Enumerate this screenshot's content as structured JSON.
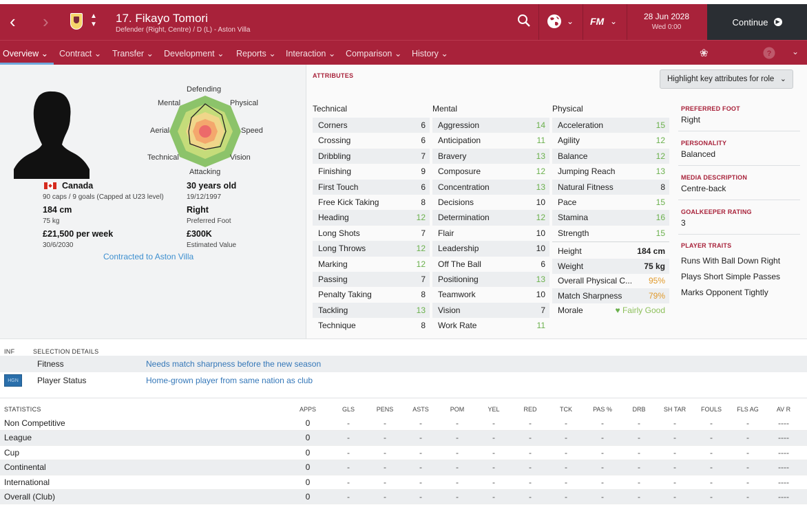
{
  "header": {
    "player_name": "17. Fikayo Tomori",
    "player_subtitle": "Defender (Right, Centre) / D (L) - Aston Villa",
    "date": "28 Jun 2028",
    "time": "Wed 0:00",
    "continue_label": "Continue",
    "icons": [
      "back-arrow",
      "forward-arrow",
      "club-crest",
      "prev-next-arrows",
      "search-icon",
      "globe-icon",
      "fm-icon",
      "play-icon"
    ]
  },
  "tabs": [
    {
      "label": "Overview",
      "active": true
    },
    {
      "label": "Contract"
    },
    {
      "label": "Transfer"
    },
    {
      "label": "Development"
    },
    {
      "label": "Reports"
    },
    {
      "label": "Interaction"
    },
    {
      "label": "Comparison"
    },
    {
      "label": "History"
    }
  ],
  "profile": {
    "nationality": "Canada",
    "caps": "90 caps / 9 goals (Capped at U23 level)",
    "height": "184 cm",
    "weight": "75 kg",
    "wage": "£21,500 per week",
    "contract_end": "30/6/2030",
    "age": "30 years old",
    "dob": "19/12/1997",
    "foot": "Right",
    "foot_caption": "Preferred Foot",
    "value": "£300K",
    "value_caption": "Estimated Value",
    "contract_link": "Contracted to Aston Villa"
  },
  "radar": {
    "labels": {
      "defending": "Defending",
      "physical": "Physical",
      "speed": "Speed",
      "vision": "Vision",
      "attacking": "Attacking",
      "technical": "Technical",
      "aerial": "Aerial",
      "mental": "Mental"
    }
  },
  "attributes": {
    "section_title": "ATTRIBUTES",
    "highlight_button": "Highlight key attributes for role",
    "technical_title": "Technical",
    "mental_title": "Mental",
    "physical_title": "Physical",
    "technical": [
      {
        "name": "Corners",
        "value": "6"
      },
      {
        "name": "Crossing",
        "value": "6"
      },
      {
        "name": "Dribbling",
        "value": "7"
      },
      {
        "name": "Finishing",
        "value": "9"
      },
      {
        "name": "First Touch",
        "value": "6"
      },
      {
        "name": "Free Kick Taking",
        "value": "8"
      },
      {
        "name": "Heading",
        "value": "12"
      },
      {
        "name": "Long Shots",
        "value": "7"
      },
      {
        "name": "Long Throws",
        "value": "12"
      },
      {
        "name": "Marking",
        "value": "12"
      },
      {
        "name": "Passing",
        "value": "7"
      },
      {
        "name": "Penalty Taking",
        "value": "8"
      },
      {
        "name": "Tackling",
        "value": "13"
      },
      {
        "name": "Technique",
        "value": "8"
      }
    ],
    "mental": [
      {
        "name": "Aggression",
        "value": "14"
      },
      {
        "name": "Anticipation",
        "value": "11"
      },
      {
        "name": "Bravery",
        "value": "13"
      },
      {
        "name": "Composure",
        "value": "12"
      },
      {
        "name": "Concentration",
        "value": "13"
      },
      {
        "name": "Decisions",
        "value": "10"
      },
      {
        "name": "Determination",
        "value": "12"
      },
      {
        "name": "Flair",
        "value": "10"
      },
      {
        "name": "Leadership",
        "value": "10"
      },
      {
        "name": "Off The Ball",
        "value": "6"
      },
      {
        "name": "Positioning",
        "value": "13"
      },
      {
        "name": "Teamwork",
        "value": "10"
      },
      {
        "name": "Vision",
        "value": "7"
      },
      {
        "name": "Work Rate",
        "value": "11"
      }
    ],
    "physical": [
      {
        "name": "Acceleration",
        "value": "15"
      },
      {
        "name": "Agility",
        "value": "12"
      },
      {
        "name": "Balance",
        "value": "12"
      },
      {
        "name": "Jumping Reach",
        "value": "13"
      },
      {
        "name": "Natural Fitness",
        "value": "8"
      },
      {
        "name": "Pace",
        "value": "15"
      },
      {
        "name": "Stamina",
        "value": "16"
      },
      {
        "name": "Strength",
        "value": "15"
      }
    ],
    "physical_extra": [
      {
        "name": "Height",
        "value": "184 cm"
      },
      {
        "name": "Weight",
        "value": "75 kg"
      },
      {
        "name": "Overall Physical C...",
        "value": "95%"
      },
      {
        "name": "Match Sharpness",
        "value": "79%"
      },
      {
        "name": "Morale",
        "value": "Fairly Good"
      }
    ]
  },
  "side_info": {
    "preferred_foot_head": "PREFERRED FOOT",
    "preferred_foot": "Right",
    "personality_head": "PERSONALITY",
    "personality": "Balanced",
    "media_head": "MEDIA DESCRIPTION",
    "media": "Centre-back",
    "gk_head": "GOALKEEPER RATING",
    "gk": "3",
    "traits_head": "PLAYER TRAITS",
    "traits": [
      "Runs With Ball Down Right",
      "Plays Short Simple Passes",
      "Marks Opponent Tightly"
    ]
  },
  "selection": {
    "inf_head": "INF",
    "title": "SELECTION DETAILS",
    "rows": [
      {
        "label": "Fitness",
        "value": "Needs match sharpness before the new season",
        "badge": ""
      },
      {
        "label": "Player Status",
        "value": "Home-grown player from same nation as club",
        "badge": "HGN"
      }
    ]
  },
  "statistics": {
    "title": "STATISTICS",
    "columns": [
      "APPS",
      "GLS",
      "PENS",
      "ASTS",
      "POM",
      "YEL",
      "RED",
      "TCK",
      "PAS %",
      "DRB",
      "SH TAR",
      "FOULS",
      "FLS AG",
      "AV R"
    ],
    "rows": [
      {
        "label": "Non Competitive",
        "cells": [
          "0",
          "-",
          "-",
          "-",
          "-",
          "-",
          "-",
          "-",
          "-",
          "-",
          "-",
          "-",
          "-",
          "----"
        ]
      },
      {
        "label": "League",
        "cells": [
          "0",
          "-",
          "-",
          "-",
          "-",
          "-",
          "-",
          "-",
          "-",
          "-",
          "-",
          "-",
          "-",
          "----"
        ]
      },
      {
        "label": "Cup",
        "cells": [
          "0",
          "-",
          "-",
          "-",
          "-",
          "-",
          "-",
          "-",
          "-",
          "-",
          "-",
          "-",
          "-",
          "----"
        ]
      },
      {
        "label": "Continental",
        "cells": [
          "0",
          "-",
          "-",
          "-",
          "-",
          "-",
          "-",
          "-",
          "-",
          "-",
          "-",
          "-",
          "-",
          "----"
        ]
      },
      {
        "label": "International",
        "cells": [
          "0",
          "-",
          "-",
          "-",
          "-",
          "-",
          "-",
          "-",
          "-",
          "-",
          "-",
          "-",
          "-",
          "----"
        ]
      },
      {
        "label": "Overall (Club)",
        "cells": [
          "0",
          "-",
          "-",
          "-",
          "-",
          "-",
          "-",
          "-",
          "-",
          "-",
          "-",
          "-",
          "-",
          "----"
        ]
      }
    ]
  },
  "colors": {
    "brand": "#a8223a",
    "continue_bg": "#2a2e33",
    "attr_good": "#6ab04c",
    "attr_warn": "#e09a2b",
    "link": "#3d8fcf"
  }
}
